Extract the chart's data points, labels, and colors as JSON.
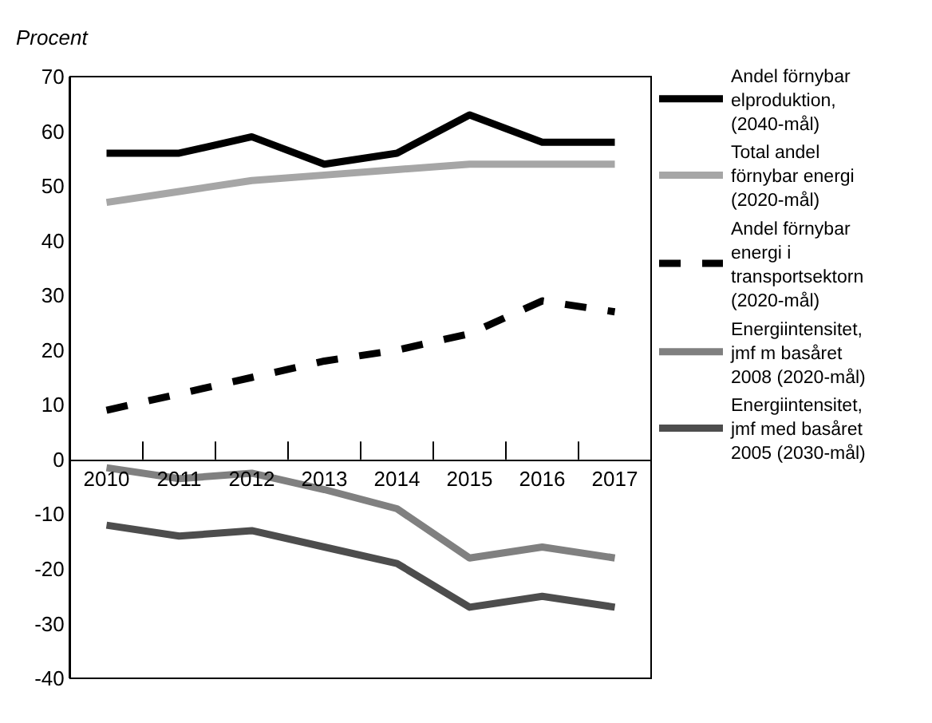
{
  "chart_data": {
    "type": "line",
    "ylabel": "Procent",
    "categories": [
      "2010",
      "2011",
      "2012",
      "2013",
      "2014",
      "2015",
      "2016",
      "2017"
    ],
    "ylim": [
      -40,
      70
    ],
    "yticks": [
      -40,
      -30,
      -20,
      -10,
      0,
      10,
      20,
      30,
      40,
      50,
      60,
      70
    ],
    "grid": false,
    "legend": "right",
    "marker": "none",
    "series": [
      {
        "name": "Andel förnybar elproduktion, (2040-mål)",
        "color": "#000000",
        "line_style": "solid",
        "values": [
          56,
          56,
          59,
          54,
          56,
          63,
          58,
          58
        ]
      },
      {
        "name": "Total andel förnybar energi (2020-mål)",
        "color": "#a6a6a6",
        "line_style": "solid",
        "values": [
          47,
          49,
          51,
          52,
          53,
          54,
          54,
          54
        ]
      },
      {
        "name": "Andel förnybar energi i transportsektorn (2020-mål)",
        "color": "#000000",
        "line_style": "dashed",
        "values": [
          9,
          12,
          15,
          18,
          20,
          23,
          29,
          27
        ]
      },
      {
        "name": "Energiintensitet, jmf m basåret 2008 (2020-mål)",
        "color": "#808080",
        "line_style": "solid",
        "values": [
          -1.5,
          -3.5,
          -2.5,
          -5.5,
          -9,
          -18,
          -16,
          -18
        ]
      },
      {
        "name": "Energiintensitet, jmf med basåret 2005 (2030-mål)",
        "color": "#4d4d4d",
        "line_style": "solid",
        "values": [
          -12,
          -14,
          -13,
          -16,
          -19,
          -27,
          -25,
          -27
        ]
      }
    ]
  }
}
